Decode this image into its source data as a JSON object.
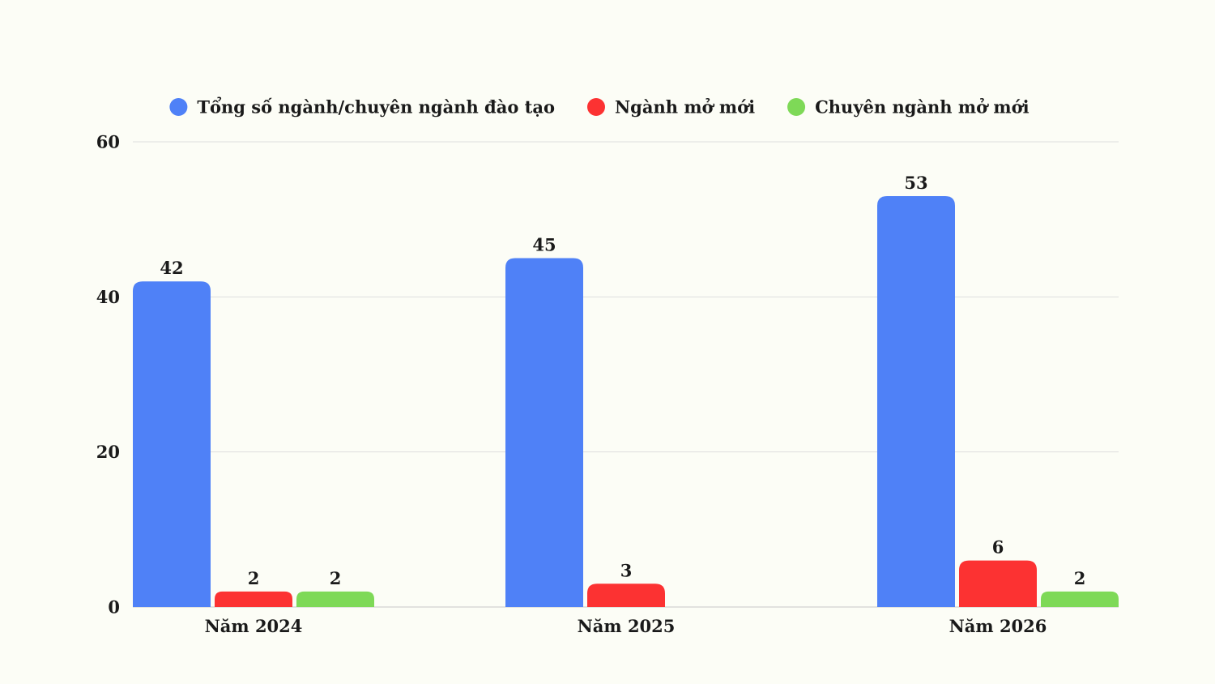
{
  "chart_data": {
    "type": "bar",
    "categories": [
      "Năm 2024",
      "Năm 2025",
      "Năm 2026"
    ],
    "series": [
      {
        "name": "Tổng số ngành/chuyên ngành đào tạo",
        "color": "#4f81f7",
        "values": [
          42,
          45,
          53
        ]
      },
      {
        "name": "Ngành mở mới",
        "color": "#fc3232",
        "values": [
          2,
          3,
          6
        ]
      },
      {
        "name": "Chuyên ngành mở mới",
        "color": "#7ed957",
        "values": [
          2,
          null,
          2
        ]
      }
    ],
    "ylim": [
      0,
      60
    ],
    "yticks": [
      0,
      20,
      40,
      60
    ],
    "grid": true,
    "legend": "top-center",
    "data_labels": true
  }
}
